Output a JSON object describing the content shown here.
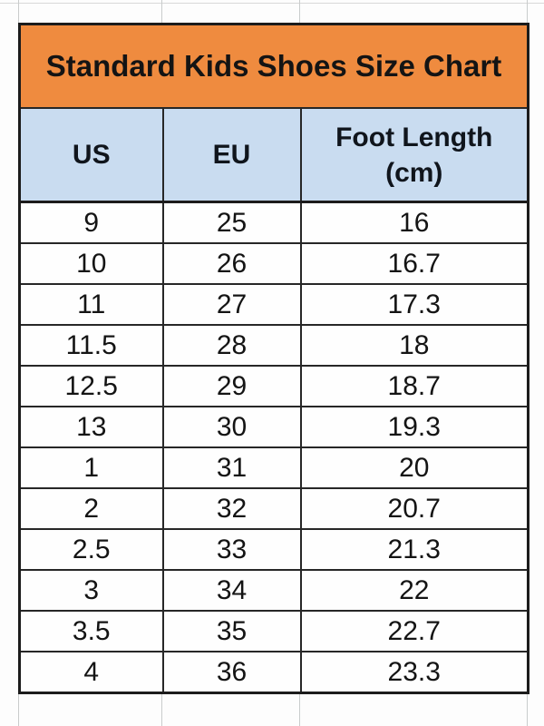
{
  "display": {
    "title": "Standard Kids Shoes Size Chart",
    "headers": [
      "US",
      "EU",
      "Foot Length\n(cm)"
    ]
  },
  "colors": {
    "title_background": "#EF8B3F",
    "header_background": "#C9DCF0",
    "table_border": "#1c1c1c",
    "gridline": "#c9cccc",
    "text": "#141414"
  },
  "chart_data": {
    "type": "table",
    "title": "Standard Kids Shoes Size Chart",
    "columns": [
      "US",
      "EU",
      "Foot Length (cm)"
    ],
    "rows": [
      [
        "9",
        "25",
        "16"
      ],
      [
        "10",
        "26",
        "16.7"
      ],
      [
        "11",
        "27",
        "17.3"
      ],
      [
        "11.5",
        "28",
        "18"
      ],
      [
        "12.5",
        "29",
        "18.7"
      ],
      [
        "13",
        "30",
        "19.3"
      ],
      [
        "1",
        "31",
        "20"
      ],
      [
        "2",
        "32",
        "20.7"
      ],
      [
        "2.5",
        "33",
        "21.3"
      ],
      [
        "3",
        "34",
        "22"
      ],
      [
        "3.5",
        "35",
        "22.7"
      ],
      [
        "4",
        "36",
        "23.3"
      ]
    ]
  }
}
